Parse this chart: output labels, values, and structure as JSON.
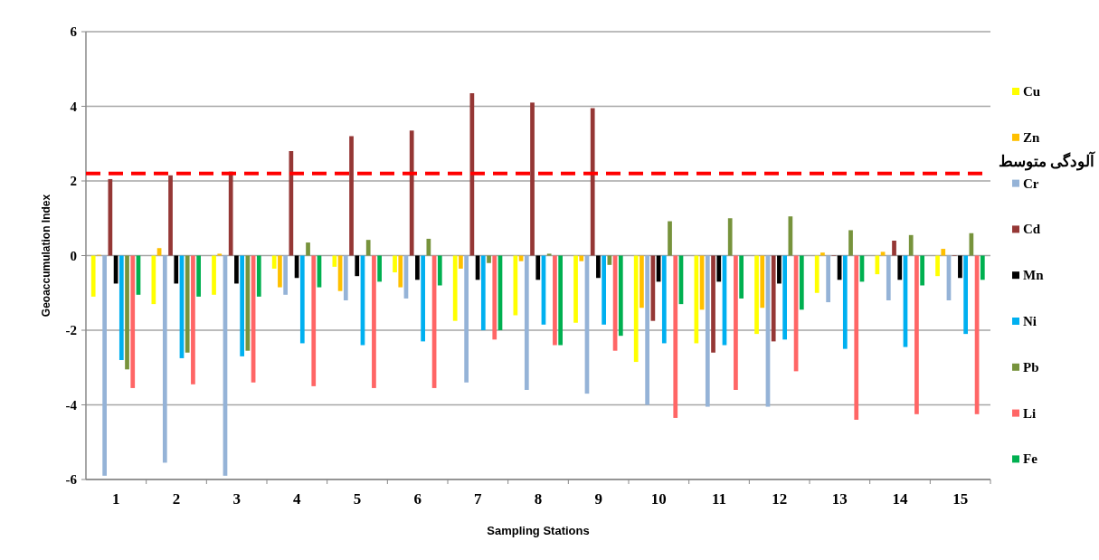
{
  "chart_data": {
    "type": "bar",
    "xlabel": "Sampling Stations",
    "ylabel": "Geoaccumulation Index",
    "categories": [
      "1",
      "2",
      "3",
      "4",
      "5",
      "6",
      "7",
      "8",
      "9",
      "10",
      "11",
      "12",
      "13",
      "14",
      "15"
    ],
    "ylim": [
      -6,
      6
    ],
    "yticks": [
      -6,
      -4,
      -2,
      0,
      2,
      4,
      6
    ],
    "grid": "y",
    "legend": "right",
    "ref_lines": [
      {
        "axis": "y",
        "value": 2.2,
        "label": "آلودگی متوسط",
        "color": "#ff0000",
        "line_style": "dashed"
      }
    ],
    "series": [
      {
        "name": "Cu",
        "color": "#ffff00",
        "values": [
          -1.1,
          -1.3,
          -1.05,
          -0.35,
          -0.3,
          -0.45,
          -1.75,
          -1.6,
          -1.8,
          -2.85,
          -2.35,
          -2.1,
          -1.0,
          -0.5,
          -0.55
        ]
      },
      {
        "name": "Zn",
        "color": "#ffc000",
        "values": [
          0.02,
          0.2,
          0.05,
          -0.85,
          -0.95,
          -0.85,
          -0.35,
          -0.15,
          -0.15,
          -1.4,
          -1.45,
          -1.4,
          0.08,
          0.1,
          0.18
        ]
      },
      {
        "name": "Cr",
        "color": "#95b3d7",
        "values": [
          -5.9,
          -5.55,
          -5.9,
          -1.05,
          -1.2,
          -1.15,
          -3.4,
          -3.6,
          -3.7,
          -4.0,
          -4.05,
          -4.05,
          -1.25,
          -1.2,
          -1.2
        ]
      },
      {
        "name": "Cd",
        "color": "#953735",
        "values": [
          2.05,
          2.15,
          2.25,
          2.8,
          3.2,
          3.35,
          4.35,
          4.1,
          3.95,
          -1.75,
          -2.6,
          -2.3,
          0,
          0.4,
          0
        ]
      },
      {
        "name": "Mn",
        "color": "#000000",
        "values": [
          -0.75,
          -0.75,
          -0.75,
          -0.6,
          -0.55,
          -0.65,
          -0.65,
          -0.65,
          -0.6,
          -0.7,
          -0.7,
          -0.75,
          -0.65,
          -0.65,
          -0.6
        ]
      },
      {
        "name": "Ni",
        "color": "#00b0f0",
        "values": [
          -2.8,
          -2.75,
          -2.7,
          -2.35,
          -2.4,
          -2.3,
          -2.0,
          -1.85,
          -1.85,
          -2.35,
          -2.4,
          -2.25,
          -2.5,
          -2.45,
          -2.1
        ]
      },
      {
        "name": "Pb",
        "color": "#77933c",
        "values": [
          -3.05,
          -2.6,
          -2.55,
          0.35,
          0.42,
          0.45,
          -0.2,
          0.05,
          -0.25,
          0.92,
          1.0,
          1.05,
          0.68,
          0.55,
          0.6
        ]
      },
      {
        "name": "Li",
        "color": "#ff6666",
        "values": [
          -3.55,
          -3.45,
          -3.4,
          -3.5,
          -3.55,
          -3.55,
          -2.25,
          -2.4,
          -2.55,
          -4.35,
          -3.6,
          -3.1,
          -4.4,
          -4.25,
          -4.25
        ]
      },
      {
        "name": "Fe",
        "color": "#00b050",
        "values": [
          -1.05,
          -1.1,
          -1.1,
          -0.85,
          -0.7,
          -0.8,
          -2.0,
          -2.4,
          -2.15,
          -1.3,
          -1.15,
          -1.45,
          -0.7,
          -0.8,
          -0.65
        ]
      }
    ]
  }
}
